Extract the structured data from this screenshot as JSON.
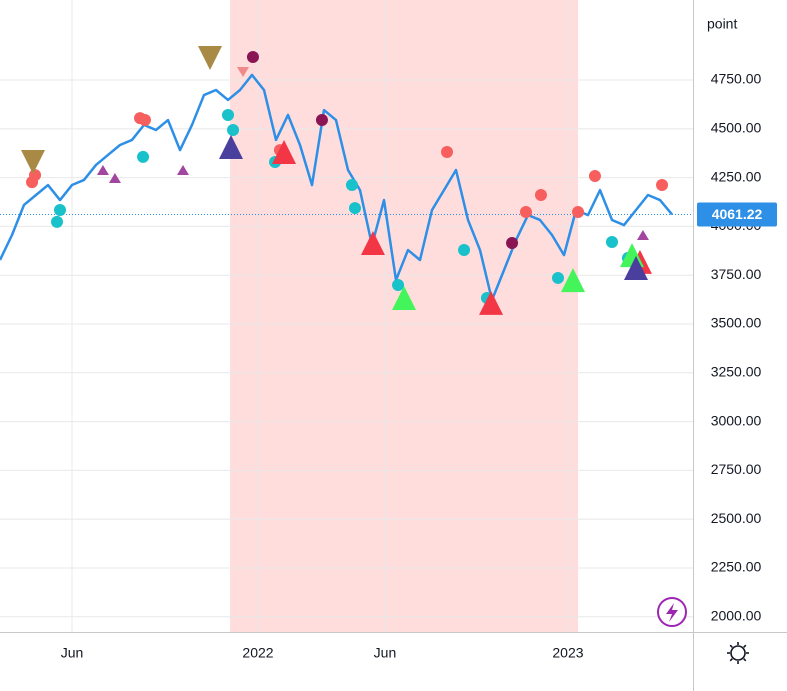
{
  "chart_data": {
    "type": "line",
    "y_axis_label": "point",
    "series": [
      {
        "color": "#2d8fe6",
        "values": [
          3828,
          3956,
          4110,
          4161,
          4212,
          4135,
          4212,
          4238,
          4315,
          4366,
          4417,
          4443,
          4520,
          4494,
          4545,
          4391,
          4520,
          4673,
          4699,
          4648,
          4699,
          4776,
          4699,
          4443,
          4571,
          4417,
          4212,
          4596,
          4545,
          4289,
          4186,
          3904,
          4135,
          3725,
          3879,
          3828,
          4084,
          4186,
          4289,
          4033,
          3879,
          3623,
          3776,
          3930,
          4058,
          4033,
          3956,
          3853,
          4084,
          4058,
          4186,
          4033,
          4007,
          4084,
          4161,
          4135,
          4061.22
        ]
      }
    ],
    "xlim": [
      0,
      57.75
    ],
    "xticks": [
      {
        "value": 6,
        "label": "Jun"
      },
      {
        "value": 21.5,
        "label": "2022"
      },
      {
        "value": 32.08,
        "label": "Jun"
      },
      {
        "value": 47.33,
        "label": "2023"
      }
    ],
    "ylim": [
      1922,
      5160
    ],
    "yticks": [
      {
        "value": 2000,
        "label": "2000.00"
      },
      {
        "value": 2250,
        "label": "2250.00"
      },
      {
        "value": 2500,
        "label": "2500.00"
      },
      {
        "value": 2750,
        "label": "2750.00"
      },
      {
        "value": 3000,
        "label": "3000.00"
      },
      {
        "value": 3250,
        "label": "3250.00"
      },
      {
        "value": 3500,
        "label": "3500.00"
      },
      {
        "value": 3750,
        "label": "3750.00"
      },
      {
        "value": 4000,
        "label": "4000.00"
      },
      {
        "value": 4250,
        "label": "4250.00"
      },
      {
        "value": 4500,
        "label": "4500.00"
      },
      {
        "value": 4750,
        "label": "4750.00"
      }
    ],
    "grid": true,
    "shaded_range": {
      "x": [
        19.17,
        48.17
      ],
      "color": "#ffdddd"
    },
    "markers": [
      {
        "shape": "circle",
        "size": "medium",
        "color": "#f75f5f",
        "x": [
          2.67,
          2.92,
          11.67,
          12.08,
          23.33,
          37.25,
          43.83,
          45.08,
          48.17,
          49.58,
          55.17
        ],
        "y": [
          4227,
          4263,
          4555,
          4545,
          4391,
          4381,
          4074,
          4161,
          4074,
          4258,
          4212
        ]
      },
      {
        "shape": "circle",
        "size": "medium",
        "color": "#19c1cb",
        "x": [
          4.75,
          5,
          11.92,
          19,
          19.42,
          22.92,
          29.33,
          29.58,
          33.17,
          38.67,
          40.58,
          46.5,
          51,
          52.33
        ],
        "y": [
          4023,
          4084,
          4356,
          4571,
          4494,
          4330,
          4212,
          4094,
          3700,
          3879,
          3633,
          3736,
          3920,
          3838
        ]
      },
      {
        "shape": "circle",
        "size": "medium",
        "color": "#8a1555",
        "x": [
          21.08,
          26.83,
          42.67
        ],
        "y": [
          4868,
          4545,
          3915
        ]
      },
      {
        "shape": "triangle-up",
        "size": "large",
        "color": "#f23645",
        "x": [
          23.67,
          31.08,
          40.92,
          53.33
        ],
        "y": [
          4381,
          3915,
          3608,
          3818
        ]
      },
      {
        "shape": "triangle-up",
        "size": "large",
        "color": "#43f55a",
        "x": [
          33.67,
          47.75,
          52.67
        ],
        "y": [
          3633,
          3725,
          3853
        ]
      },
      {
        "shape": "triangle-up",
        "size": "large",
        "color": "#4b3f9e",
        "x": [
          19.25,
          53
        ],
        "y": [
          4407,
          3787
        ]
      },
      {
        "shape": "triangle-up",
        "size": "small",
        "color": "#a2479f",
        "x": [
          8.58,
          9.58,
          15.25,
          53.58
        ],
        "y": [
          4289,
          4248,
          4289,
          3956
        ]
      },
      {
        "shape": "triangle-down",
        "size": "large",
        "color": "#a88a45",
        "x": [
          2.75,
          17.5
        ],
        "y": [
          4330,
          4863
        ]
      },
      {
        "shape": "triangle-down",
        "size": "small",
        "color": "#f08a8a",
        "x": [
          20.25
        ],
        "y": [
          4791
        ]
      }
    ]
  }
}
